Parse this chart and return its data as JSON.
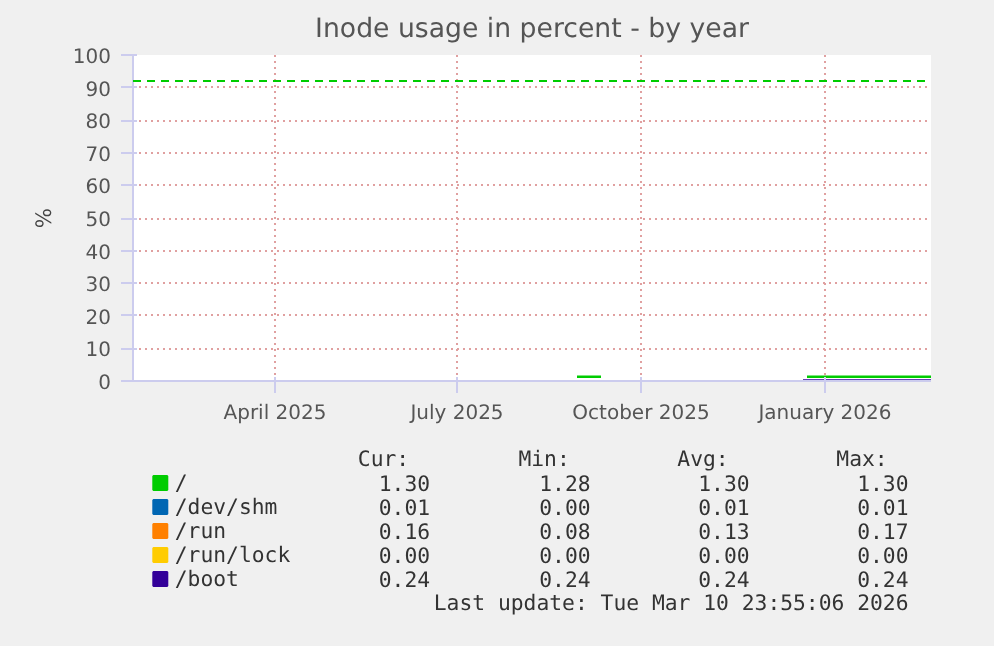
{
  "chart_data": {
    "type": "line",
    "title": "Inode usage in percent - by year",
    "ylabel": "%",
    "xlim": [
      "2025-02-04",
      "2026-03-10"
    ],
    "xticks": [
      {
        "value": "2025-04-16",
        "label": "April 2025"
      },
      {
        "value": "2025-07-16",
        "label": "July 2025"
      },
      {
        "value": "2025-10-16",
        "label": "October 2025"
      },
      {
        "value": "2026-01-16",
        "label": "January 2026"
      }
    ],
    "ylim": [
      0,
      100
    ],
    "yticks": [
      0,
      10,
      20,
      30,
      40,
      50,
      60,
      70,
      80,
      90,
      100
    ],
    "grid": true,
    "legend": "bottom",
    "series": [
      {
        "name": "/",
        "color": "#00cc00",
        "x": [
          "2025-09-14",
          "2025-09-26",
          "2025-09-27",
          "2026-01-07",
          "2026-03-10"
        ],
        "values": [
          1.3,
          1.3,
          null,
          1.3,
          1.3
        ]
      },
      {
        "name": "/dev/shm",
        "color": "#0066b3"
      },
      {
        "name": "/run",
        "color": "#ff8000"
      },
      {
        "name": "/run/lock",
        "color": "#ffcc00"
      },
      {
        "name": "/boot",
        "color": "#330099",
        "x": [
          "2026-01-05",
          "2026-03-10"
        ],
        "values": [
          0.2,
          0.2
        ]
      }
    ],
    "ref_lines": [
      {
        "axis": "y",
        "value": 92,
        "color": "#00cc00",
        "line_style": "dashed"
      }
    ],
    "annotations": [
      "Cur:",
      "Min:",
      "Avg:",
      "Max:",
      "1.30",
      "1.28",
      "1.30",
      "1.30",
      "0.01",
      "0.00",
      "0.01",
      "0.01",
      "0.16",
      "0.08",
      "0.13",
      "0.17",
      "0.00",
      "0.00",
      "0.00",
      "0.00",
      "0.24",
      "0.24",
      "0.24",
      "0.24",
      "Last update: Tue Mar 10 23:55:06 2026"
    ]
  }
}
